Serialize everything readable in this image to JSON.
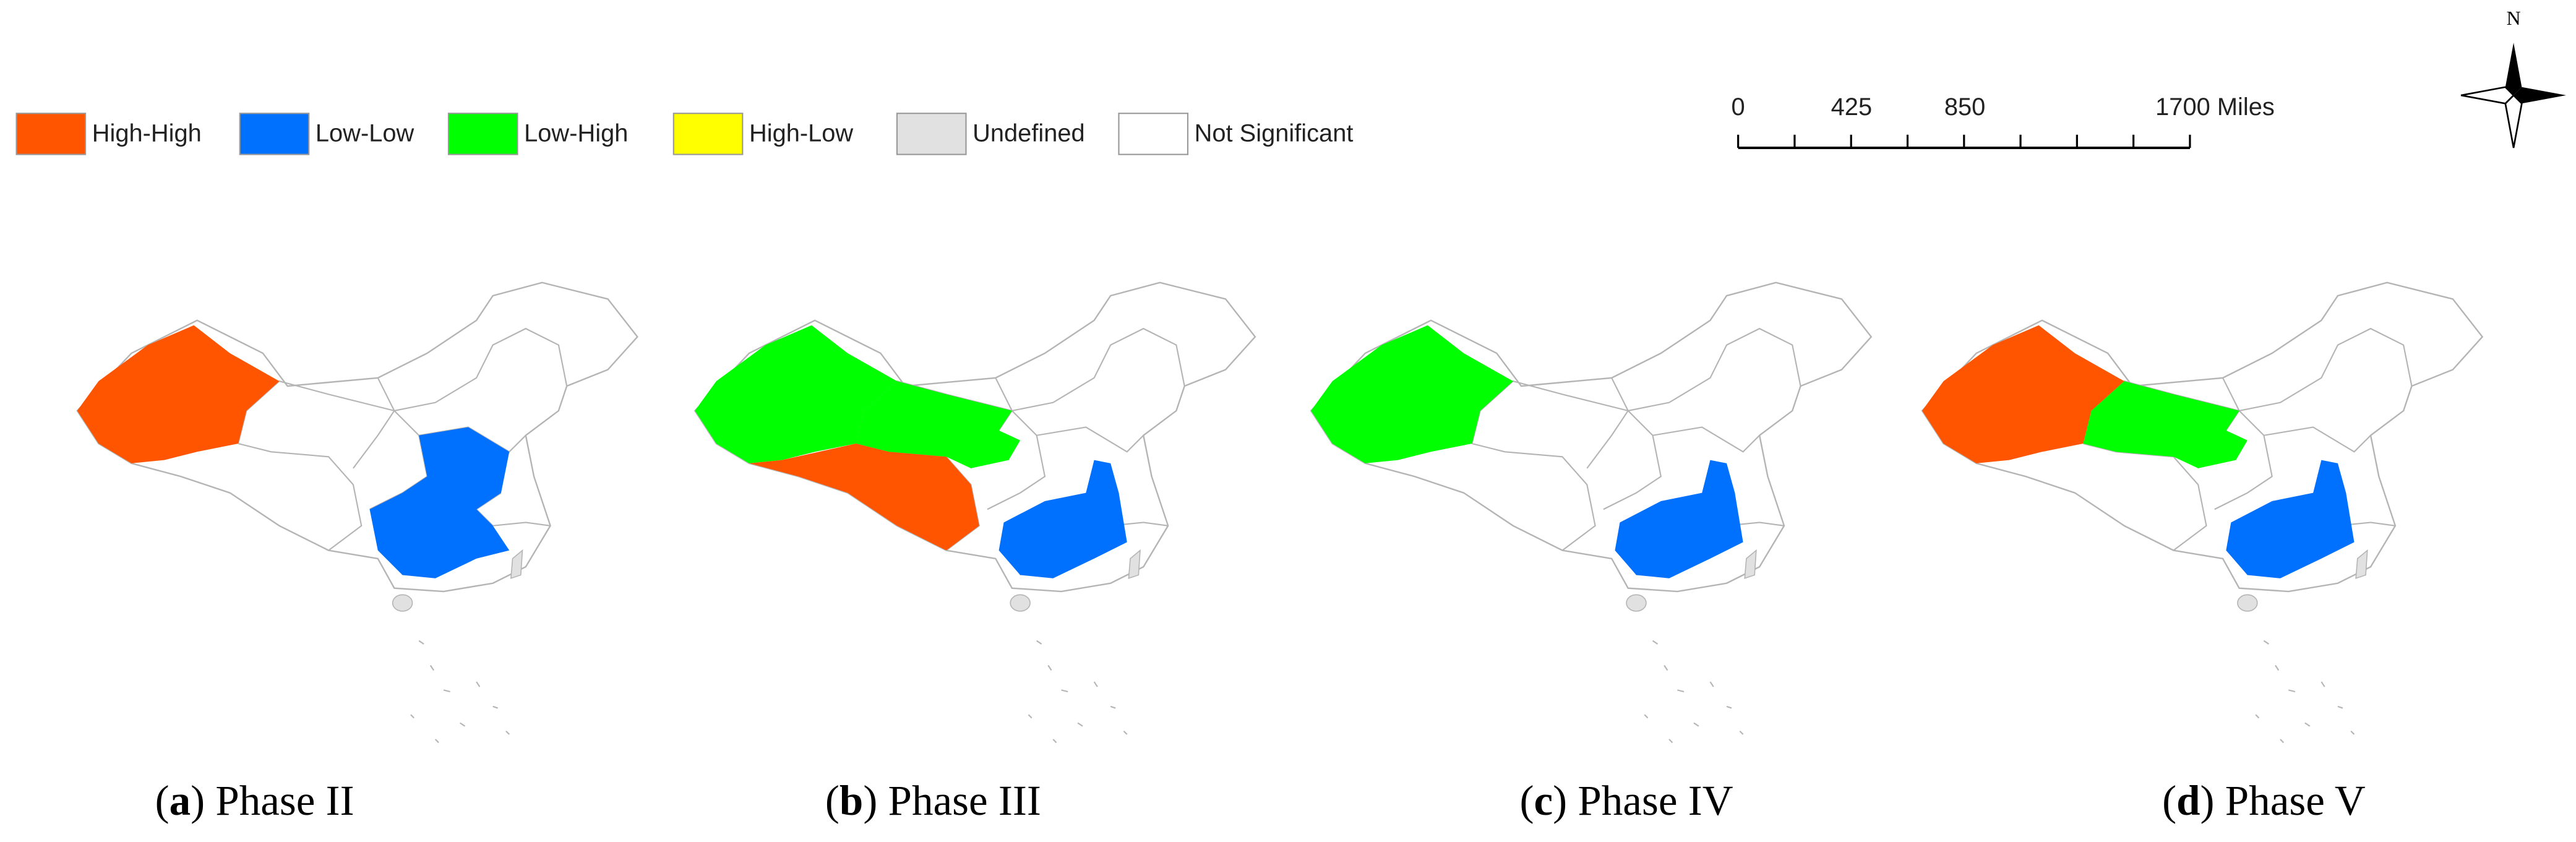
{
  "legend": {
    "items": [
      {
        "label": "High-High",
        "color": "#ff5500"
      },
      {
        "label": "Low-Low",
        "color": "#0070ff"
      },
      {
        "label": "Low-High",
        "color": "#00ff00"
      },
      {
        "label": "High-Low",
        "color": "#ffff00"
      },
      {
        "label": "Undefined",
        "color": "#e1e1e1"
      },
      {
        "label": "Not Significant",
        "color": "#ffffff"
      }
    ]
  },
  "scale_bar": {
    "labels": [
      "0",
      "425",
      "850",
      "1700 Miles"
    ]
  },
  "north_arrow": {
    "label": "N"
  },
  "captions": [
    {
      "parts": [
        "(",
        "a",
        ") Phase II"
      ]
    },
    {
      "parts": [
        "(",
        "b",
        ") Phase III"
      ]
    },
    {
      "parts": [
        "(",
        "c",
        ") Phase IV"
      ]
    },
    {
      "parts": [
        "(",
        "d",
        ") Phase V"
      ]
    }
  ]
}
